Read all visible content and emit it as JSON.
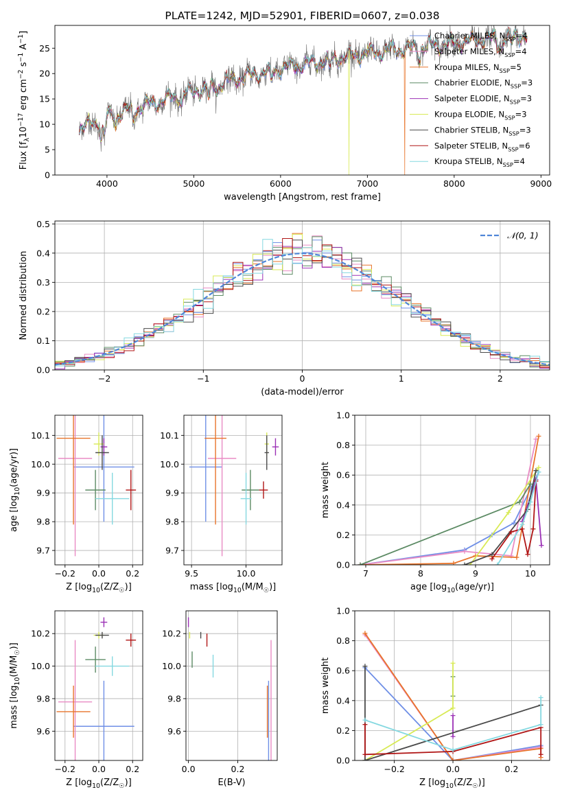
{
  "colors": {
    "chabrier_miles": "#6f8fe6",
    "salpeter_miles": "#e98bc4",
    "kroupa_miles": "#e8742a",
    "chabrier_elodie": "#5b8a63",
    "salpeter_elodie": "#9b30b5",
    "kroupa_elodie": "#d8ea55",
    "chabrier_stelib": "#4a4a4a",
    "salpeter_stelib": "#b01515",
    "kroupa_stelib": "#84d8e0",
    "gauss": "#4f86d8"
  },
  "chart_data": [
    {
      "id": "spectrum",
      "type": "line",
      "title": "PLATE=1242, MJD=52901, FIBERID=0607, z=0.038",
      "xlabel": "wavelength [Angstrom, rest frame]",
      "ylabel": "Flux [fλ10⁻¹⁷ erg cm⁻² s⁻¹ A⁻¹]",
      "xlim": [
        3400,
        9100
      ],
      "ylim": [
        0,
        29.5
      ],
      "xticks": [
        4000,
        5000,
        6000,
        7000,
        8000,
        9000
      ],
      "yticks": [
        0,
        5,
        10,
        15,
        20,
        25
      ],
      "grid": false,
      "legend_position": "top-right",
      "legend": [
        "Chabrier MILES, N_SSP=4",
        "Salpeter MILES, N_SSP=4",
        "Kroupa MILES, N_SSP=5",
        "Chabrier ELODIE, N_SSP=3",
        "Salpeter ELODIE, N_SSP=3",
        "Kroupa ELODIE, N_SSP=3",
        "Chabrier STELIB, N_SSP=3",
        "Salpeter STELIB, N_SSP=6",
        "Kroupa STELIB, N_SSP=4"
      ],
      "continuum": {
        "x": [
          3680,
          4000,
          4500,
          5000,
          5500,
          6000,
          6500,
          7000,
          7500,
          8000,
          8500,
          8840
        ],
        "y": [
          9,
          11.5,
          14,
          16.5,
          19,
          21,
          22.5,
          24,
          25,
          26,
          27,
          27.5
        ]
      },
      "data_range": [
        3680,
        8840
      ],
      "model_cutoffs": [
        {
          "x": 6790,
          "series": "Kroupa ELODIE"
        },
        {
          "x": 7430,
          "series": "Kroupa MILES"
        }
      ]
    },
    {
      "id": "residuals",
      "type": "histogram",
      "xlabel": "(data-model)/error",
      "ylabel": "Normed distribution",
      "xlim": [
        -2.5,
        2.5
      ],
      "ylim": [
        0,
        0.51
      ],
      "xticks": [
        -2,
        -1,
        0,
        1,
        2
      ],
      "yticks": [
        0.0,
        0.1,
        0.2,
        0.3,
        0.4,
        0.5
      ],
      "grid": true,
      "legend_position": "top-right",
      "legend": [
        "𝒩(0, 1)"
      ],
      "bin_width": 0.1,
      "reference_curve": "normal(0,1)"
    },
    {
      "id": "age_vs_Z",
      "type": "errorbar",
      "xlabel": "Z [log₁₀(Z/Z☉)]",
      "ylabel": "age  [log₁₀(age/yr)]",
      "xlim": [
        -0.26,
        0.26
      ],
      "ylim": [
        9.65,
        10.17
      ],
      "xticks": [
        -0.2,
        0.0,
        0.2
      ],
      "yticks": [
        9.7,
        9.8,
        9.9,
        10.0,
        10.1
      ],
      "grid": true,
      "points": [
        {
          "model": "Chabrier MILES",
          "x": 0.03,
          "y": 9.99,
          "xerr": 0.18,
          "yerr": 0.19
        },
        {
          "model": "Salpeter MILES",
          "x": -0.14,
          "y": 10.02,
          "xerr": 0.1,
          "yerr": 0.34
        },
        {
          "model": "Kroupa MILES",
          "x": -0.15,
          "y": 10.09,
          "xerr": 0.1,
          "yerr": 0.3
        },
        {
          "model": "Chabrier ELODIE",
          "x": -0.02,
          "y": 9.91,
          "xerr": 0.06,
          "yerr": 0.07
        },
        {
          "model": "Salpeter ELODIE",
          "x": 0.03,
          "y": 10.06,
          "xerr": 0.02,
          "yerr": 0.03
        },
        {
          "model": "Kroupa ELODIE",
          "x": 0.0,
          "y": 10.07,
          "xerr": 0.03,
          "yerr": 0.04
        },
        {
          "model": "Chabrier STELIB",
          "x": 0.02,
          "y": 10.04,
          "xerr": 0.04,
          "yerr": 0.06
        },
        {
          "model": "Salpeter STELIB",
          "x": 0.19,
          "y": 9.91,
          "xerr": 0.03,
          "yerr": 0.07
        },
        {
          "model": "Kroupa STELIB",
          "x": 0.08,
          "y": 9.88,
          "xerr": 0.1,
          "yerr": 0.09
        }
      ]
    },
    {
      "id": "age_vs_mass",
      "type": "errorbar",
      "xlabel": "mass [log₁₀(M/M☉)]",
      "ylabel": "",
      "xlim": [
        9.43,
        10.33
      ],
      "ylim": [
        9.65,
        10.17
      ],
      "xticks": [
        9.5,
        10.0
      ],
      "yticks": [
        9.7,
        9.8,
        9.9,
        10.0,
        10.1
      ],
      "grid": true,
      "points": [
        {
          "model": "Chabrier MILES",
          "x": 9.63,
          "y": 9.99,
          "xerr": 0.15,
          "yerr": 0.19
        },
        {
          "model": "Salpeter MILES",
          "x": 9.78,
          "y": 10.02,
          "xerr": 0.13,
          "yerr": 0.34
        },
        {
          "model": "Kroupa MILES",
          "x": 9.72,
          "y": 10.09,
          "xerr": 0.1,
          "yerr": 0.3
        },
        {
          "model": "Chabrier ELODIE",
          "x": 10.04,
          "y": 9.91,
          "xerr": 0.08,
          "yerr": 0.07
        },
        {
          "model": "Salpeter ELODIE",
          "x": 10.27,
          "y": 10.06,
          "xerr": 0.03,
          "yerr": 0.03
        },
        {
          "model": "Kroupa ELODIE",
          "x": 10.19,
          "y": 10.07,
          "xerr": 0.02,
          "yerr": 0.04
        },
        {
          "model": "Chabrier STELIB",
          "x": 10.19,
          "y": 10.04,
          "xerr": 0.02,
          "yerr": 0.06
        },
        {
          "model": "Salpeter STELIB",
          "x": 10.16,
          "y": 9.91,
          "xerr": 0.04,
          "yerr": 0.03
        },
        {
          "model": "Kroupa STELIB",
          "x": 10.0,
          "y": 9.88,
          "xerr": 0.05,
          "yerr": 0.09
        }
      ]
    },
    {
      "id": "mass_weight_vs_age",
      "type": "line",
      "xlabel": "age  [log₁₀(age/yr)]",
      "ylabel": "mass weight",
      "xlim": [
        6.8,
        10.35
      ],
      "ylim": [
        0,
        1.0
      ],
      "xticks": [
        7,
        8,
        9,
        10
      ],
      "yticks": [
        0.0,
        0.2,
        0.4,
        0.6,
        0.8,
        1.0
      ],
      "grid": true,
      "series": [
        {
          "name": "Chabrier MILES",
          "x": [
            6.9,
            8.8,
            9.3,
            9.7,
            10.15
          ],
          "y": [
            0.0,
            0.1,
            0.2,
            0.28,
            0.62
          ]
        },
        {
          "name": "Salpeter MILES",
          "x": [
            6.9,
            8.8,
            9.65,
            10.1
          ],
          "y": [
            0.0,
            0.09,
            0.06,
            0.84
          ]
        },
        {
          "name": "Kroupa MILES",
          "x": [
            6.9,
            8.6,
            9.0,
            9.75,
            10.15
          ],
          "y": [
            0.0,
            0.01,
            0.06,
            0.05,
            0.86
          ]
        },
        {
          "name": "Chabrier ELODIE",
          "x": [
            6.9,
            9.8,
            10.0
          ],
          "y": [
            0.0,
            0.42,
            0.54
          ]
        },
        {
          "name": "Salpeter ELODIE",
          "x": [
            9.85,
            10.1,
            10.2
          ],
          "y": [
            0.29,
            0.57,
            0.13
          ]
        },
        {
          "name": "Kroupa ELODIE",
          "x": [
            8.9,
            9.6,
            10.15
          ],
          "y": [
            0.0,
            0.35,
            0.65
          ]
        },
        {
          "name": "Chabrier STELIB",
          "x": [
            8.8,
            9.3,
            9.95,
            10.1
          ],
          "y": [
            0.0,
            0.07,
            0.37,
            0.63
          ]
        },
        {
          "name": "Salpeter STELIB",
          "x": [
            9.3,
            9.65,
            9.85,
            9.95,
            10.05,
            10.1
          ],
          "y": [
            0.04,
            0.22,
            0.24,
            0.07,
            0.24,
            0.56
          ]
        },
        {
          "name": "Kroupa STELIB",
          "x": [
            9.4,
            9.85,
            10.0,
            10.15
          ],
          "y": [
            0.0,
            0.27,
            0.42,
            0.62
          ]
        }
      ]
    },
    {
      "id": "mass_vs_Z",
      "type": "errorbar",
      "xlabel": "Z [log₁₀(Z/Z☉)]",
      "ylabel": "mass [log₁₀(M/M☉)]",
      "xlim": [
        -0.26,
        0.26
      ],
      "ylim": [
        9.42,
        10.34
      ],
      "xticks": [
        -0.2,
        0.0,
        0.2
      ],
      "yticks": [
        9.6,
        9.8,
        10.0,
        10.2
      ],
      "grid": true,
      "points": [
        {
          "model": "Chabrier MILES",
          "x": 0.03,
          "y": 9.63,
          "xerr": 0.18,
          "yerr": 0.28
        },
        {
          "model": "Salpeter MILES",
          "x": -0.14,
          "y": 9.78,
          "xerr": 0.1,
          "yerr": 0.38
        },
        {
          "model": "Kroupa MILES",
          "x": -0.15,
          "y": 9.72,
          "xerr": 0.1,
          "yerr": 0.16
        },
        {
          "model": "Chabrier ELODIE",
          "x": -0.02,
          "y": 10.04,
          "xerr": 0.06,
          "yerr": 0.08
        },
        {
          "model": "Salpeter ELODIE",
          "x": 0.03,
          "y": 10.27,
          "xerr": 0.02,
          "yerr": 0.03
        },
        {
          "model": "Kroupa ELODIE",
          "x": 0.0,
          "y": 10.19,
          "xerr": 0.03,
          "yerr": 0.02
        },
        {
          "model": "Chabrier STELIB",
          "x": 0.02,
          "y": 10.19,
          "xerr": 0.04,
          "yerr": 0.02
        },
        {
          "model": "Salpeter STELIB",
          "x": 0.19,
          "y": 10.16,
          "xerr": 0.03,
          "yerr": 0.04
        },
        {
          "model": "Kroupa STELIB",
          "x": 0.08,
          "y": 10.0,
          "xerr": 0.1,
          "yerr": 0.06
        }
      ]
    },
    {
      "id": "mass_vs_ebv",
      "type": "errorbar",
      "xlabel": "E(B-V)",
      "ylabel": "",
      "xlim": [
        -0.01,
        0.36
      ],
      "ylim": [
        9.42,
        10.34
      ],
      "xticks": [
        0.0,
        0.2
      ],
      "yticks": [
        9.6,
        9.8,
        10.0,
        10.2
      ],
      "grid": true,
      "points": [
        {
          "model": "Chabrier MILES",
          "x": 0.325,
          "y": 9.63,
          "xerr": 0,
          "yerr": 0.28
        },
        {
          "model": "Salpeter MILES",
          "x": 0.335,
          "y": 9.78,
          "xerr": 0,
          "yerr": 0.38
        },
        {
          "model": "Kroupa MILES",
          "x": 0.32,
          "y": 9.72,
          "xerr": 0,
          "yerr": 0.16
        },
        {
          "model": "Chabrier ELODIE",
          "x": 0.015,
          "y": 10.04,
          "xerr": 0,
          "yerr": 0.05
        },
        {
          "model": "Salpeter ELODIE",
          "x": 0.0,
          "y": 10.27,
          "xerr": 0,
          "yerr": 0.03
        },
        {
          "model": "Kroupa ELODIE",
          "x": 0.005,
          "y": 10.19,
          "xerr": 0,
          "yerr": 0.02
        },
        {
          "model": "Chabrier STELIB",
          "x": 0.05,
          "y": 10.19,
          "xerr": 0,
          "yerr": 0.02
        },
        {
          "model": "Salpeter STELIB",
          "x": 0.075,
          "y": 10.16,
          "xerr": 0,
          "yerr": 0.04
        },
        {
          "model": "Kroupa STELIB",
          "x": 0.1,
          "y": 10.0,
          "xerr": 0,
          "yerr": 0.07
        }
      ]
    },
    {
      "id": "mass_weight_vs_Z",
      "type": "line",
      "xlabel": "Z [log₁₀(Z/Z☉)]",
      "ylabel": "mass weight",
      "xlim": [
        -0.335,
        0.33
      ],
      "ylim": [
        0,
        1.0
      ],
      "xticks": [
        -0.2,
        0.0,
        0.2
      ],
      "yticks": [
        0.0,
        0.2,
        0.4,
        0.6,
        0.8,
        1.0
      ],
      "grid": true,
      "series": [
        {
          "name": "Chabrier MILES",
          "x": [
            -0.3,
            0.0,
            0.3
          ],
          "y": [
            0.62,
            0.0,
            0.1
          ]
        },
        {
          "name": "Salpeter MILES",
          "x": [
            -0.3,
            0.0,
            0.3
          ],
          "y": [
            0.84,
            0.0,
            0.09
          ]
        },
        {
          "name": "Kroupa MILES",
          "x": [
            -0.3,
            0.0,
            0.3,
            0.3
          ],
          "y": [
            0.85,
            0.0,
            0.08,
            0.02
          ]
        },
        {
          "name": "Chabrier ELODIE",
          "x": [
            0.0,
            0.0
          ],
          "y": [
            0.43,
            0.56
          ]
        },
        {
          "name": "Salpeter ELODIE",
          "x": [
            0.0,
            0.0
          ],
          "y": [
            0.16,
            0.3
          ]
        },
        {
          "name": "Kroupa ELODIE",
          "x": [
            -0.3,
            0.0,
            0.0
          ],
          "y": [
            0.0,
            0.35,
            0.65
          ]
        },
        {
          "name": "Chabrier STELIB",
          "x": [
            -0.3,
            0.3,
            -0.3,
            -0.3
          ],
          "y": [
            0.0,
            0.37,
            0.0,
            0.63
          ]
        },
        {
          "name": "Salpeter STELIB",
          "x": [
            -0.3,
            -0.3,
            0.0,
            0.3,
            0.3
          ],
          "y": [
            0.24,
            0.04,
            0.06,
            0.22,
            0.04
          ]
        },
        {
          "name": "Kroupa STELIB",
          "x": [
            -0.3,
            0.0,
            0.3,
            0.3
          ],
          "y": [
            0.27,
            0.07,
            0.24,
            0.42
          ]
        }
      ]
    }
  ]
}
